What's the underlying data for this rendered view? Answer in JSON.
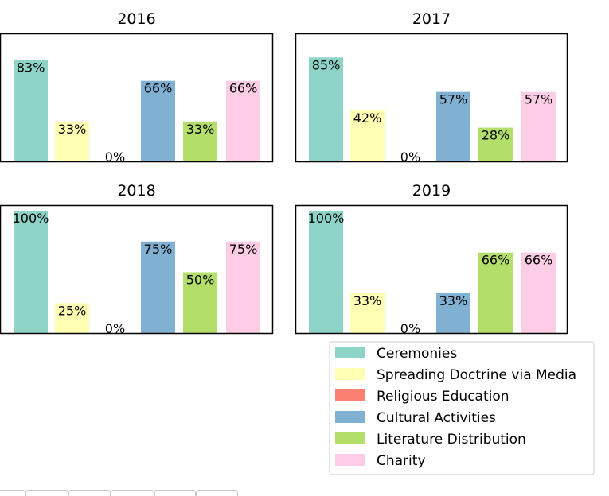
{
  "chart_data": {
    "type": "bar",
    "categories": [
      "Ceremonies",
      "Spreading Doctrine via Media",
      "Religious Education",
      "Cultural Activities",
      "Literature Distribution",
      "Charity"
    ],
    "colors": [
      "#8dd3c7",
      "#ffffb3",
      "#fb8072",
      "#80b1d3",
      "#b3de69",
      "#fccde5"
    ],
    "value_format": "percent",
    "ylim": [
      0,
      1
    ],
    "legend_position": "bottom-right",
    "panels": [
      {
        "title": "2016",
        "values": [
          0.83,
          0.33,
          0.0,
          0.66,
          0.33,
          0.66
        ],
        "labels": [
          "83%",
          "33%",
          "0%",
          "66%",
          "33%",
          "66%"
        ]
      },
      {
        "title": "2017",
        "values": [
          0.85,
          0.42,
          0.0,
          0.57,
          0.28,
          0.57
        ],
        "labels": [
          "85%",
          "42%",
          "0%",
          "57%",
          "28%",
          "57%"
        ]
      },
      {
        "title": "2018",
        "values": [
          1.0,
          0.25,
          0.0,
          0.75,
          0.5,
          0.75
        ],
        "labels": [
          "100%",
          "25%",
          "0%",
          "75%",
          "50%",
          "75%"
        ]
      },
      {
        "title": "2019",
        "values": [
          1.0,
          0.33,
          0.0,
          0.33,
          0.66,
          0.66
        ],
        "labels": [
          "100%",
          "33%",
          "0%",
          "33%",
          "66%",
          "66%"
        ]
      }
    ]
  },
  "legend": {
    "items": [
      {
        "label": "Ceremonies",
        "color": "#8dd3c7"
      },
      {
        "label": "Spreading Doctrine via Media",
        "color": "#ffffb3"
      },
      {
        "label": "Religious Education",
        "color": "#fb8072"
      },
      {
        "label": "Cultural Activities",
        "color": "#80b1d3"
      },
      {
        "label": "Literature Distribution",
        "color": "#b3de69"
      },
      {
        "label": "Charity",
        "color": "#fccde5"
      }
    ]
  }
}
